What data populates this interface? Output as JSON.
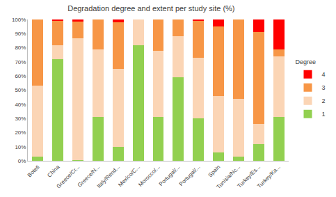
{
  "chart_data": {
    "type": "bar",
    "title": "Degradation degree and extent per study site (%)",
    "legend_title": "Degree",
    "stacked": true,
    "grid": false,
    "legend": "right",
    "categories": [
      "Boteti",
      "China",
      "Greece/Cr...",
      "Greece/N...",
      "Italy/Rend...",
      "Mexico/C...",
      "Morocco/...",
      "Portugal/...",
      "Portugal/...",
      "Spain",
      "Tunisia/Nc...",
      "Turkey/Es...",
      "Turkey/Ka..."
    ],
    "series": [
      {
        "name": "1",
        "color": "#92d050",
        "values": [
          3,
          72,
          0.5,
          31,
          10,
          82,
          31,
          59,
          30,
          6,
          3,
          12,
          31
        ]
      },
      {
        "name": "2",
        "color": "#fbd5b5",
        "values": [
          50,
          10,
          86,
          48,
          55,
          18,
          47,
          29,
          43,
          40,
          41,
          14,
          43
        ]
      },
      {
        "name": "3",
        "color": "#f79646",
        "values": [
          47,
          17.5,
          12,
          21,
          33,
          0,
          22,
          12,
          26.5,
          49,
          56,
          65,
          5
        ]
      },
      {
        "name": "4",
        "color": "#ff0000",
        "values": [
          0,
          0.5,
          1.5,
          0,
          2,
          0,
          0,
          0,
          0.5,
          5,
          0,
          9,
          21
        ]
      }
    ],
    "ylim": [
      0,
      100
    ],
    "yticks": [
      {
        "value": 0,
        "label": "0%"
      },
      {
        "value": 10,
        "label": "10%"
      },
      {
        "value": 20,
        "label": "20%"
      },
      {
        "value": 30,
        "label": "30%"
      },
      {
        "value": 40,
        "label": "40%"
      },
      {
        "value": 50,
        "label": "50%"
      },
      {
        "value": 60,
        "label": "60%"
      },
      {
        "value": 70,
        "label": "70%"
      },
      {
        "value": 80,
        "label": "80%"
      },
      {
        "value": 90,
        "label": "90%"
      },
      {
        "value": 100,
        "label": "100%"
      }
    ]
  }
}
